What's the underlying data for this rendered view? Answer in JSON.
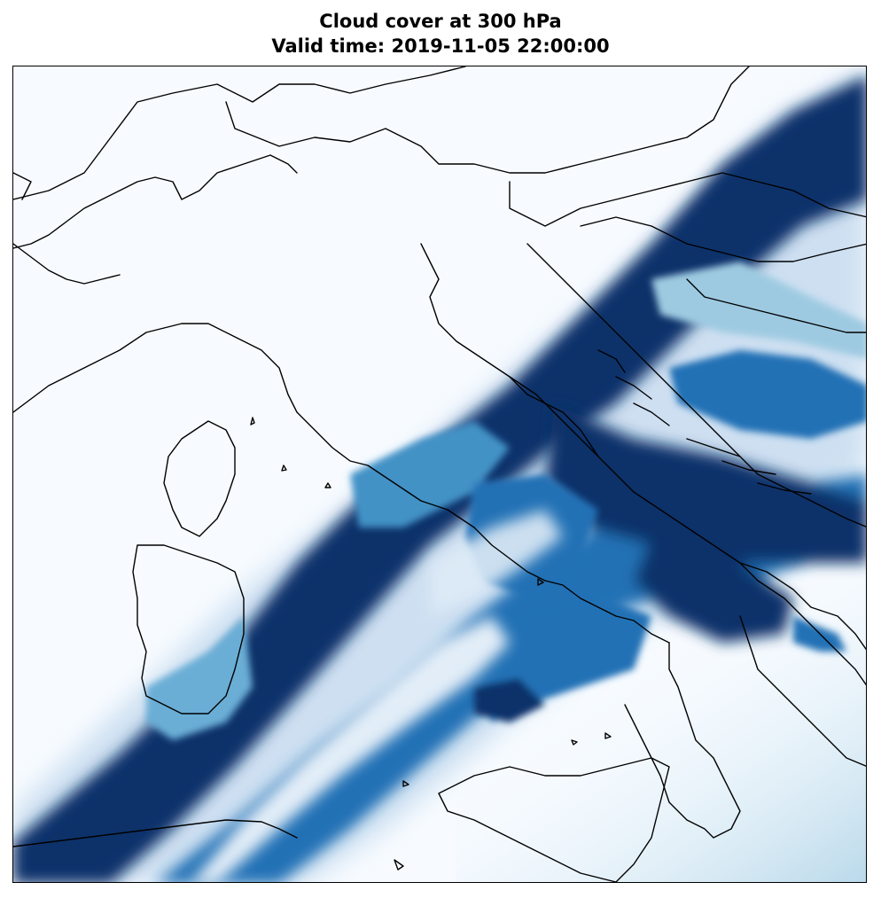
{
  "title": {
    "line1": "Cloud cover at 300 hPa",
    "line2": "Valid time: 2019-11-05 22:00:00"
  },
  "map": {
    "variable": "Cloud cover",
    "pressure_level": "300 hPa",
    "valid_time": "2019-11-05 22:00:00",
    "colormap": "Blues",
    "colors": {
      "low": "#f7fbff",
      "light": "#c6dbef",
      "mid": "#6baed6",
      "high": "#2171b5",
      "max": "#08306b",
      "coastline": "#000000"
    }
  }
}
